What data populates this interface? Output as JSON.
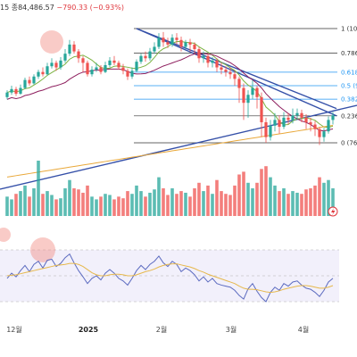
{
  "header": {
    "prefix": "15",
    "close_label": "종84,486.57",
    "change": "−790.33 (−0.93%)"
  },
  "chart_data": {
    "type": "candlestick",
    "x_axis": {
      "tick_labels": [
        "12월",
        "2025",
        "2월",
        "3월",
        "4월"
      ]
    },
    "fib_levels": [
      {
        "label": "1 (10",
        "value": 1.0,
        "color": "#333333"
      },
      {
        "label": "0.786",
        "value": 0.786,
        "color": "#333333"
      },
      {
        "label": "0.618",
        "value": 0.618,
        "color": "#2196f3"
      },
      {
        "label": "0.5 (9",
        "value": 0.5,
        "color": "#2196f3"
      },
      {
        "label": "0.382",
        "value": 0.382,
        "color": "#2196f3"
      },
      {
        "label": "0.236",
        "value": 0.236,
        "color": "#333333"
      },
      {
        "label": "0 (76",
        "value": 0.0,
        "color": "#333333"
      }
    ],
    "price_candles": [
      [
        0.4,
        0.44,
        0.46,
        0.38
      ],
      [
        0.44,
        0.47,
        0.5,
        0.42
      ],
      [
        0.47,
        0.43,
        0.49,
        0.41
      ],
      [
        0.43,
        0.48,
        0.51,
        0.42
      ],
      [
        0.48,
        0.55,
        0.57,
        0.47
      ],
      [
        0.55,
        0.52,
        0.58,
        0.5
      ],
      [
        0.52,
        0.58,
        0.6,
        0.51
      ],
      [
        0.58,
        0.62,
        0.64,
        0.56
      ],
      [
        0.62,
        0.6,
        0.66,
        0.58
      ],
      [
        0.6,
        0.67,
        0.7,
        0.59
      ],
      [
        0.67,
        0.7,
        0.74,
        0.65
      ],
      [
        0.7,
        0.66,
        0.72,
        0.63
      ],
      [
        0.66,
        0.72,
        0.75,
        0.64
      ],
      [
        0.72,
        0.78,
        0.82,
        0.7
      ],
      [
        0.78,
        0.86,
        0.9,
        0.76
      ],
      [
        0.86,
        0.8,
        0.89,
        0.78
      ],
      [
        0.8,
        0.74,
        0.82,
        0.7
      ],
      [
        0.74,
        0.7,
        0.76,
        0.62
      ],
      [
        0.7,
        0.6,
        0.72,
        0.58
      ],
      [
        0.6,
        0.64,
        0.67,
        0.58
      ],
      [
        0.64,
        0.66,
        0.7,
        0.62
      ],
      [
        0.66,
        0.62,
        0.68,
        0.6
      ],
      [
        0.62,
        0.68,
        0.71,
        0.61
      ],
      [
        0.68,
        0.72,
        0.75,
        0.66
      ],
      [
        0.72,
        0.7,
        0.76,
        0.68
      ],
      [
        0.7,
        0.66,
        0.72,
        0.64
      ],
      [
        0.66,
        0.63,
        0.69,
        0.6
      ],
      [
        0.63,
        0.58,
        0.65,
        0.55
      ],
      [
        0.58,
        0.63,
        0.66,
        0.56
      ],
      [
        0.63,
        0.71,
        0.73,
        0.62
      ],
      [
        0.71,
        0.76,
        0.78,
        0.69
      ],
      [
        0.76,
        0.74,
        0.8,
        0.71
      ],
      [
        0.74,
        0.8,
        0.83,
        0.72
      ],
      [
        0.8,
        0.84,
        0.88,
        0.78
      ],
      [
        0.84,
        0.92,
        0.96,
        0.82
      ],
      [
        0.92,
        0.88,
        0.97,
        0.84
      ],
      [
        0.88,
        0.86,
        0.92,
        0.83
      ],
      [
        0.86,
        0.92,
        0.95,
        0.84
      ],
      [
        0.92,
        0.9,
        0.96,
        0.86
      ],
      [
        0.9,
        0.84,
        0.93,
        0.8
      ],
      [
        0.84,
        0.88,
        0.9,
        0.82
      ],
      [
        0.88,
        0.86,
        0.91,
        0.8
      ],
      [
        0.86,
        0.82,
        0.88,
        0.78
      ],
      [
        0.82,
        0.74,
        0.84,
        0.7
      ],
      [
        0.74,
        0.76,
        0.8,
        0.7
      ],
      [
        0.76,
        0.7,
        0.78,
        0.66
      ],
      [
        0.7,
        0.72,
        0.75,
        0.66
      ],
      [
        0.72,
        0.66,
        0.74,
        0.62
      ],
      [
        0.66,
        0.64,
        0.7,
        0.6
      ],
      [
        0.64,
        0.62,
        0.67,
        0.58
      ],
      [
        0.62,
        0.6,
        0.66,
        0.56
      ],
      [
        0.6,
        0.56,
        0.63,
        0.5
      ],
      [
        0.56,
        0.48,
        0.58,
        0.35
      ],
      [
        0.48,
        0.35,
        0.52,
        0.2
      ],
      [
        0.35,
        0.42,
        0.46,
        0.22
      ],
      [
        0.42,
        0.48,
        0.55,
        0.38
      ],
      [
        0.48,
        0.4,
        0.5,
        0.3
      ],
      [
        0.4,
        0.18,
        0.44,
        0.05
      ],
      [
        0.18,
        0.05,
        0.22,
        0.0
      ],
      [
        0.05,
        0.15,
        0.2,
        0.02
      ],
      [
        0.15,
        0.2,
        0.26,
        0.1
      ],
      [
        0.2,
        0.14,
        0.24,
        0.08
      ],
      [
        0.14,
        0.22,
        0.27,
        0.12
      ],
      [
        0.22,
        0.2,
        0.26,
        0.16
      ],
      [
        0.2,
        0.24,
        0.3,
        0.17
      ],
      [
        0.24,
        0.26,
        0.3,
        0.2
      ],
      [
        0.26,
        0.22,
        0.29,
        0.18
      ],
      [
        0.22,
        0.18,
        0.25,
        0.12
      ],
      [
        0.18,
        0.16,
        0.22,
        0.1
      ],
      [
        0.16,
        0.12,
        0.19,
        0.06
      ],
      [
        0.12,
        0.05,
        0.14,
        -0.02
      ],
      [
        0.05,
        0.1,
        0.13,
        0.01
      ],
      [
        0.1,
        0.2,
        0.23,
        0.08
      ],
      [
        0.2,
        0.24,
        0.27,
        0.16
      ]
    ],
    "volume_bars": [
      [
        0.35,
        1
      ],
      [
        0.3,
        1
      ],
      [
        0.4,
        0
      ],
      [
        0.45,
        1
      ],
      [
        0.55,
        1
      ],
      [
        0.35,
        0
      ],
      [
        0.5,
        1
      ],
      [
        1.0,
        1
      ],
      [
        0.4,
        0
      ],
      [
        0.45,
        1
      ],
      [
        0.38,
        1
      ],
      [
        0.3,
        0
      ],
      [
        0.32,
        1
      ],
      [
        0.5,
        1
      ],
      [
        0.65,
        1
      ],
      [
        0.5,
        0
      ],
      [
        0.48,
        0
      ],
      [
        0.42,
        0
      ],
      [
        0.55,
        0
      ],
      [
        0.35,
        1
      ],
      [
        0.3,
        1
      ],
      [
        0.35,
        0
      ],
      [
        0.4,
        1
      ],
      [
        0.38,
        1
      ],
      [
        0.3,
        0
      ],
      [
        0.35,
        0
      ],
      [
        0.32,
        0
      ],
      [
        0.45,
        0
      ],
      [
        0.4,
        1
      ],
      [
        0.55,
        1
      ],
      [
        0.45,
        1
      ],
      [
        0.35,
        0
      ],
      [
        0.42,
        1
      ],
      [
        0.48,
        1
      ],
      [
        0.7,
        1
      ],
      [
        0.5,
        0
      ],
      [
        0.38,
        0
      ],
      [
        0.5,
        1
      ],
      [
        0.4,
        0
      ],
      [
        0.45,
        0
      ],
      [
        0.42,
        1
      ],
      [
        0.35,
        0
      ],
      [
        0.5,
        0
      ],
      [
        0.6,
        0
      ],
      [
        0.45,
        1
      ],
      [
        0.55,
        0
      ],
      [
        0.4,
        1
      ],
      [
        0.65,
        0
      ],
      [
        0.45,
        0
      ],
      [
        0.4,
        0
      ],
      [
        0.38,
        0
      ],
      [
        0.55,
        0
      ],
      [
        0.75,
        0
      ],
      [
        0.8,
        0
      ],
      [
        0.6,
        1
      ],
      [
        0.5,
        1
      ],
      [
        0.6,
        0
      ],
      [
        0.85,
        0
      ],
      [
        0.9,
        0
      ],
      [
        0.7,
        1
      ],
      [
        0.55,
        1
      ],
      [
        0.45,
        0
      ],
      [
        0.5,
        1
      ],
      [
        0.4,
        0
      ],
      [
        0.45,
        1
      ],
      [
        0.42,
        1
      ],
      [
        0.4,
        0
      ],
      [
        0.48,
        0
      ],
      [
        0.5,
        0
      ],
      [
        0.55,
        0
      ],
      [
        0.7,
        0
      ],
      [
        0.6,
        1
      ],
      [
        0.65,
        1
      ],
      [
        0.5,
        1
      ]
    ],
    "rsi_series": [
      0.45,
      0.55,
      0.48,
      0.6,
      0.7,
      0.58,
      0.72,
      0.78,
      0.65,
      0.8,
      0.82,
      0.68,
      0.74,
      0.85,
      0.92,
      0.75,
      0.6,
      0.48,
      0.35,
      0.45,
      0.5,
      0.42,
      0.55,
      0.62,
      0.55,
      0.45,
      0.4,
      0.32,
      0.45,
      0.6,
      0.7,
      0.62,
      0.72,
      0.78,
      0.88,
      0.75,
      0.68,
      0.78,
      0.72,
      0.58,
      0.65,
      0.6,
      0.52,
      0.4,
      0.48,
      0.38,
      0.45,
      0.35,
      0.32,
      0.3,
      0.28,
      0.22,
      0.12,
      0.05,
      0.25,
      0.35,
      0.2,
      0.08,
      0.0,
      0.18,
      0.28,
      0.22,
      0.35,
      0.3,
      0.38,
      0.4,
      0.32,
      0.26,
      0.24,
      0.18,
      0.1,
      0.22,
      0.38,
      0.45
    ],
    "rsi_ma": [
      0.5,
      0.51,
      0.52,
      0.54,
      0.56,
      0.58,
      0.6,
      0.62,
      0.64,
      0.66,
      0.68,
      0.7,
      0.71,
      0.72,
      0.74,
      0.74,
      0.72,
      0.68,
      0.62,
      0.56,
      0.52,
      0.5,
      0.5,
      0.52,
      0.53,
      0.53,
      0.52,
      0.5,
      0.5,
      0.52,
      0.55,
      0.58,
      0.6,
      0.63,
      0.67,
      0.7,
      0.72,
      0.73,
      0.73,
      0.71,
      0.69,
      0.67,
      0.64,
      0.6,
      0.57,
      0.53,
      0.5,
      0.47,
      0.44,
      0.41,
      0.38,
      0.35,
      0.3,
      0.26,
      0.24,
      0.24,
      0.23,
      0.21,
      0.19,
      0.18,
      0.19,
      0.21,
      0.24,
      0.26,
      0.28,
      0.3,
      0.31,
      0.31,
      0.3,
      0.28,
      0.26,
      0.26,
      0.28,
      0.31
    ]
  },
  "colors": {
    "up": "#26a69a",
    "down": "#ef5350",
    "trendline": "#3550a8",
    "ma_short": "#7cb342",
    "ma_mid": "#8e1f5e",
    "ma_long": "#e9a83a",
    "rsi": "#5c6bc0",
    "rsi_ma": "#e6b84c",
    "highlight": "#f28b82"
  }
}
